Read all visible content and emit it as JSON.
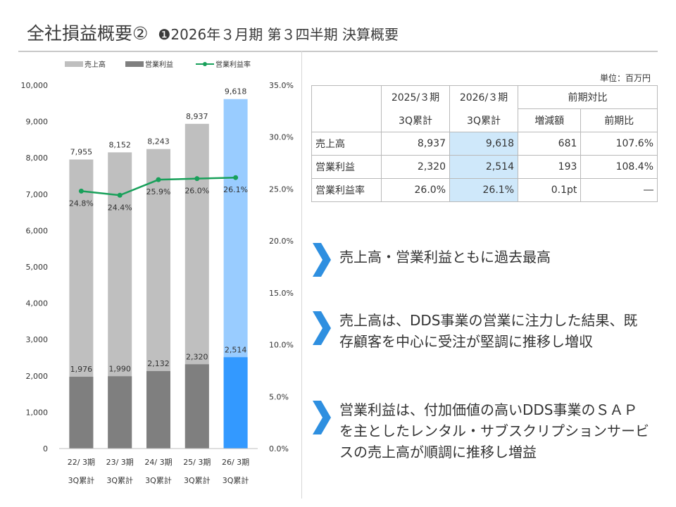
{
  "header": {
    "title": "全社損益概要②",
    "subtitle": "❶2026年３月期 第３四半期 決算概要"
  },
  "unit_label": "単位：百万円",
  "colors": {
    "sales_bar": "#bfbfbf",
    "profit_bar": "#7f7f7f",
    "sales_bar_highlight": "#99ccff",
    "profit_bar_highlight": "#3399ff",
    "margin_line": "#18a05a",
    "table_highlight": "#cfe8fa",
    "bullet_arrow": "#2e8fe0"
  },
  "chart_data": {
    "type": "bar",
    "stacked": "overlapping",
    "title": "",
    "legend": [
      "売上高",
      "営業利益",
      "営業利益率"
    ],
    "legend_position": "top-left",
    "categories": [
      {
        "line1": "22/ 3期",
        "line2": "3Q累計"
      },
      {
        "line1": "23/ 3期",
        "line2": "3Q累計"
      },
      {
        "line1": "24/ 3期",
        "line2": "3Q累計"
      },
      {
        "line1": "25/ 3期",
        "line2": "3Q累計"
      },
      {
        "line1": "26/ 3期",
        "line2": "3Q累計"
      }
    ],
    "series": [
      {
        "name": "売上高",
        "values": [
          7955,
          8152,
          8243,
          8937,
          9618
        ],
        "labels": [
          "7,955",
          "8,152",
          "8,243",
          "8,937",
          "9,618"
        ]
      },
      {
        "name": "営業利益",
        "values": [
          1976,
          1990,
          2132,
          2320,
          2514
        ],
        "labels": [
          "1,976",
          "1,990",
          "2,132",
          "2,320",
          "2,514"
        ]
      },
      {
        "name": "営業利益率",
        "axis": "right",
        "values": [
          24.8,
          24.4,
          25.9,
          26.0,
          26.1
        ],
        "labels": [
          "24.8%",
          "24.4%",
          "25.9%",
          "26.0%",
          "26.1%"
        ]
      }
    ],
    "ylim": [
      0,
      10000
    ],
    "y_ticks": [
      "0",
      "1,000",
      "2,000",
      "3,000",
      "4,000",
      "5,000",
      "6,000",
      "7,000",
      "8,000",
      "9,000",
      "10,000"
    ],
    "y2lim": [
      0,
      35
    ],
    "y2_ticks": [
      "0.0%",
      "5.0%",
      "10.0%",
      "15.0%",
      "20.0%",
      "25.0%",
      "30.0%",
      "35.0%"
    ],
    "grid": false
  },
  "table": {
    "headers": {
      "col1_top": "2025/３期",
      "col1_bottom": "3Q累計",
      "col2_top": "2026/３期",
      "col2_bottom": "3Q累計",
      "group": "前期対比",
      "change": "増減額",
      "ratio": "前期比"
    },
    "rows": [
      {
        "label": "売上高",
        "prev": "8,937",
        "curr": "9,618",
        "change": "681",
        "ratio": "107.6%"
      },
      {
        "label": "営業利益",
        "prev": "2,320",
        "curr": "2,514",
        "change": "193",
        "ratio": "108.4%"
      },
      {
        "label": "営業利益率",
        "prev": "26.0%",
        "curr": "26.1%",
        "change": "0.1pt",
        "ratio": "―"
      }
    ]
  },
  "bullets": [
    "売上高・営業利益ともに過去最高",
    "売上高は、DDS事業の営業に注力した結果、既存顧客を中心に受注が堅調に推移し増収",
    "営業利益は、付加価値の高いDDS事業のＳＡＰを主としたレンタル・サブスクリプションサービスの売上高が順調に推移し増益"
  ]
}
